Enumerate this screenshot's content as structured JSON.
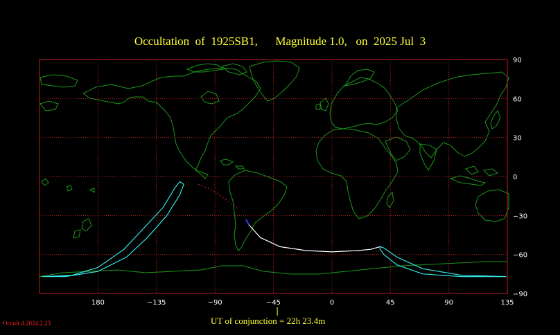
{
  "title": "Occultation  of  1925SB1,      Magnitude 1.0,   on  2025 Jul  3",
  "ut_label": "UT of conjunction = 22h 23.4m",
  "version": "Occult 4.2024.2.23",
  "colors": {
    "background": "#000000",
    "grid": "#c02020",
    "coast": "#1a9a1a",
    "title": "#ffff33",
    "path_limits": "#33e5e5",
    "center_line": "#ffffff",
    "pre_path": "#e02020",
    "star_marker": "#2040ff"
  },
  "axes": {
    "lon_ticks": [
      "180",
      "−135",
      "−90",
      "−45",
      "0",
      "45",
      "90",
      "135"
    ],
    "lat_ticks": [
      "90",
      "60",
      "30",
      "0",
      "−30",
      "−60",
      "−90"
    ]
  },
  "map_data": {
    "projection": "equirectangular, centered 0° longitude",
    "lon_range": [
      -225,
      135
    ],
    "lat_range": [
      -90,
      90
    ],
    "lon_grid": [
      -180,
      -135,
      -90,
      -45,
      0,
      45,
      90,
      135
    ],
    "lat_grid": [
      60,
      30,
      0,
      -30,
      -60
    ],
    "conjunction_lon": -42,
    "center_line": [
      [
        -64,
        -37
      ],
      [
        -55,
        -47
      ],
      [
        -40,
        -54
      ],
      [
        -20,
        -57
      ],
      [
        0,
        -58
      ],
      [
        20,
        -57
      ],
      [
        30,
        -56
      ],
      [
        37,
        -54
      ]
    ],
    "dotted_path": [
      [
        -103,
        -6
      ],
      [
        -95,
        -9
      ],
      [
        -88,
        -13
      ],
      [
        -80,
        -19
      ],
      [
        -72,
        -25
      ]
    ],
    "star_marker": [
      [
        -66,
        -33
      ],
      [
        -64,
        -37
      ]
    ],
    "limit_loop_west": [
      [
        -223,
        -77
      ],
      [
        -200,
        -76
      ],
      [
        -180,
        -70
      ],
      [
        -160,
        -56
      ],
      [
        -145,
        -40
      ],
      [
        -130,
        -24
      ],
      [
        -121,
        -9
      ],
      [
        -117,
        -4
      ],
      [
        -114,
        -6
      ],
      [
        -117,
        -14
      ],
      [
        -127,
        -30
      ],
      [
        -142,
        -47
      ],
      [
        -158,
        -62
      ],
      [
        -180,
        -73
      ],
      [
        -205,
        -77
      ],
      [
        -223,
        -77
      ]
    ],
    "limit_loop_east": [
      [
        37,
        -54
      ],
      [
        40,
        -55
      ],
      [
        50,
        -62
      ],
      [
        70,
        -71
      ],
      [
        100,
        -76
      ],
      [
        134,
        -77
      ],
      [
        100,
        -77
      ],
      [
        70,
        -75
      ],
      [
        50,
        -68
      ],
      [
        40,
        -60
      ],
      [
        37,
        -56
      ],
      [
        37,
        -54
      ]
    ]
  }
}
